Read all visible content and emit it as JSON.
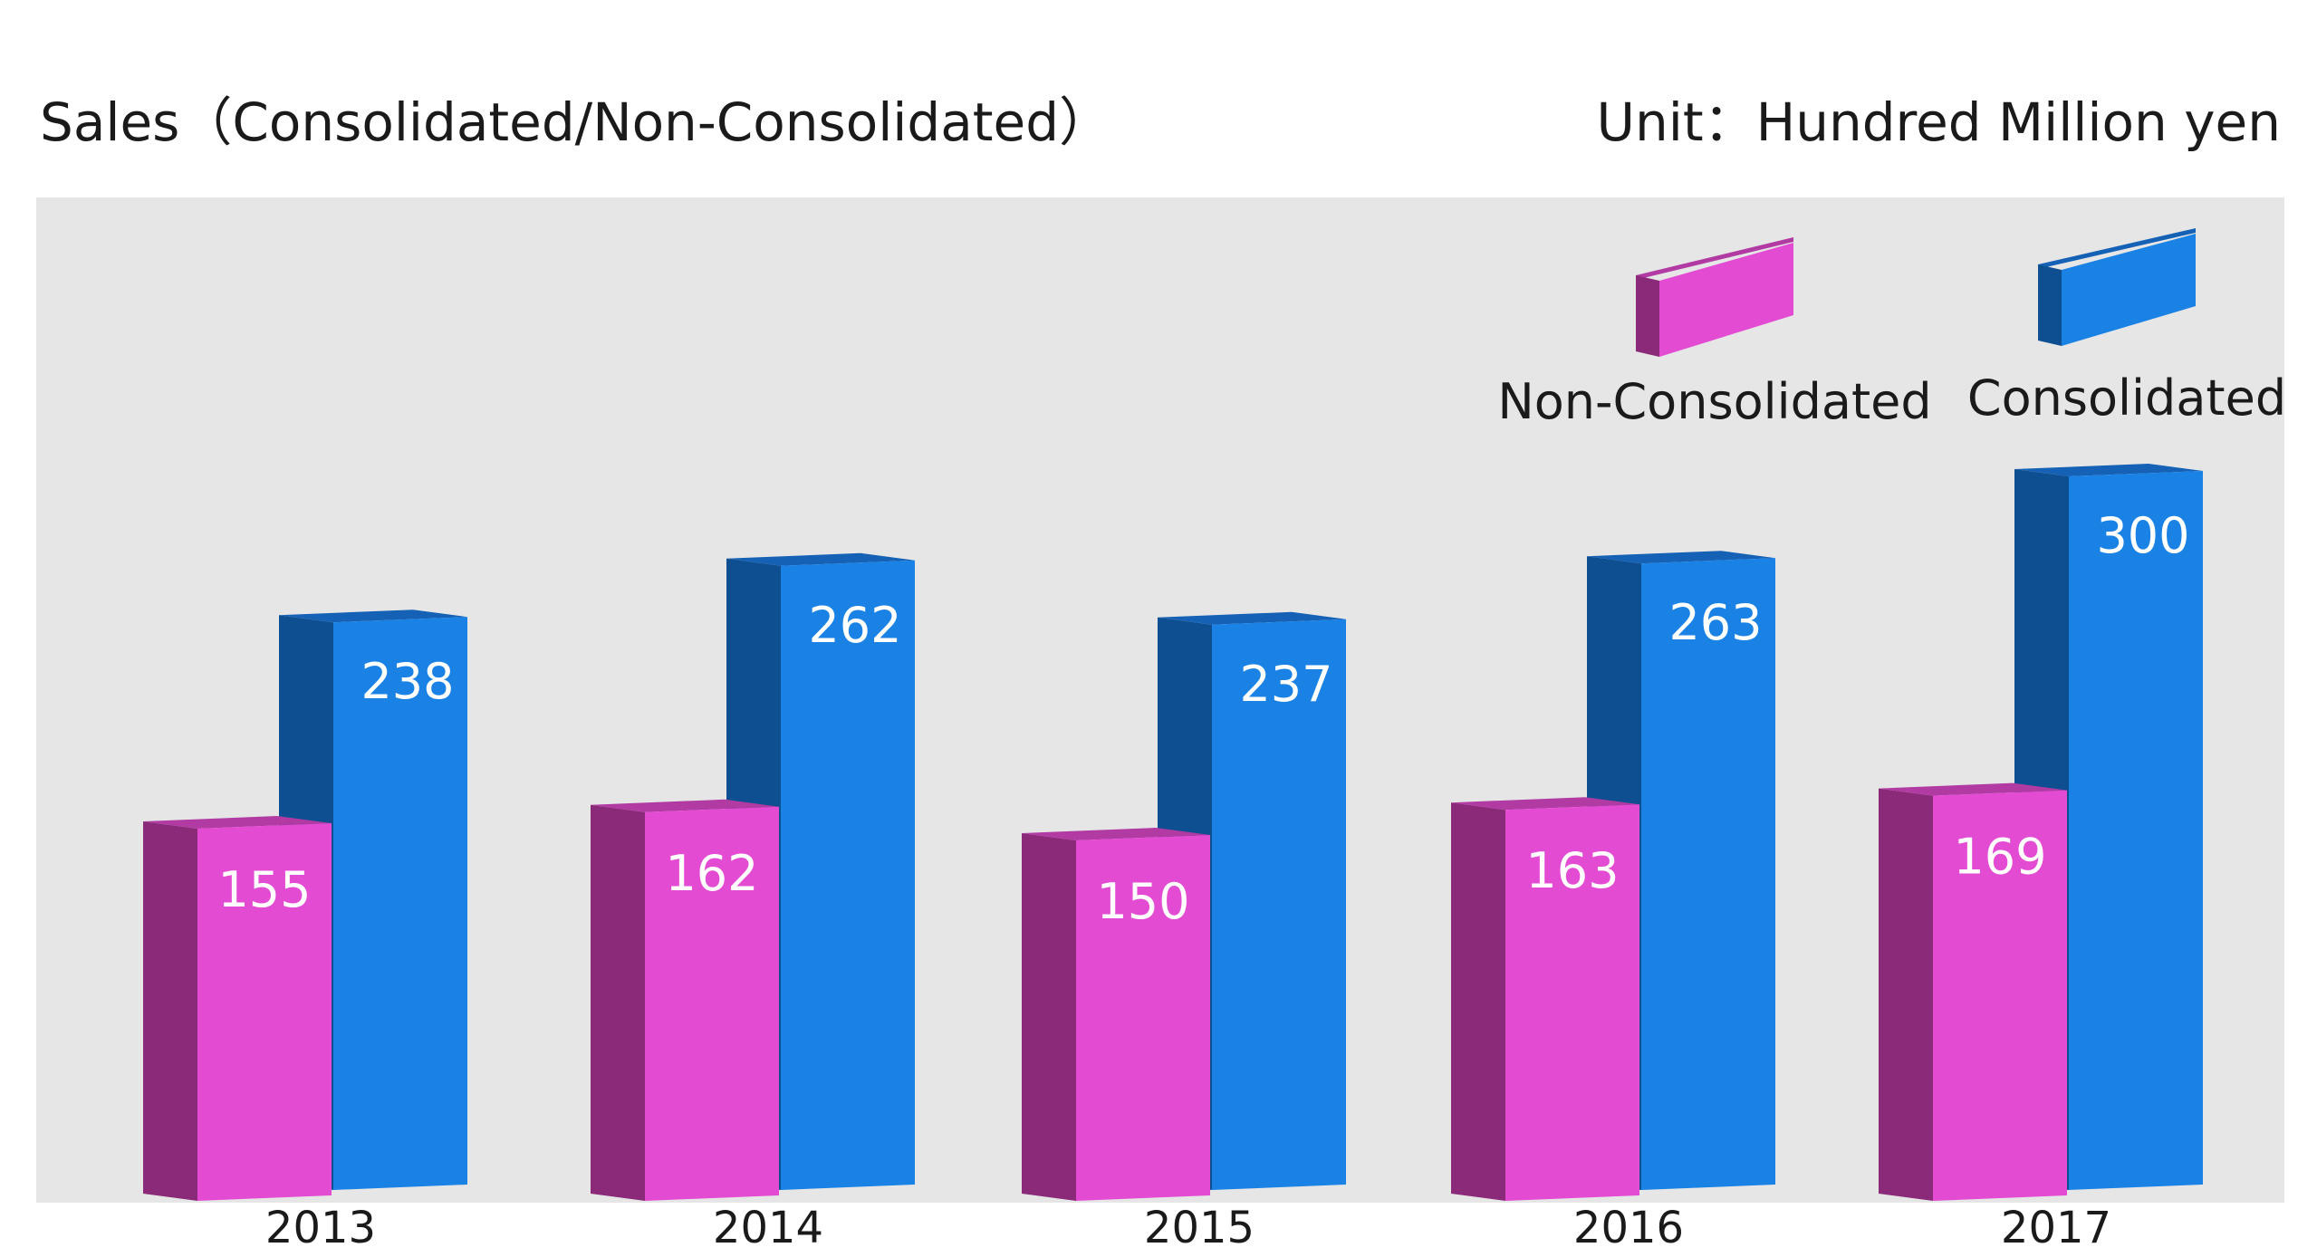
{
  "chart_data": {
    "type": "bar",
    "title": "Sales（Consolidated/Non-Consolidated）",
    "unit_label": "Unit：Hundred Million yen",
    "categories": [
      "2013",
      "2014",
      "2015",
      "2016",
      "2017"
    ],
    "series": [
      {
        "name": "Non-Consolidated",
        "values": [
          155,
          162,
          150,
          163,
          169
        ]
      },
      {
        "name": "Consolidated",
        "values": [
          238,
          262,
          237,
          263,
          300
        ]
      }
    ],
    "xlabel": "",
    "ylabel": "",
    "ylim": [
      0,
      300
    ],
    "legend": "top-right",
    "grid": false,
    "colors": {
      "non_consolidated_front": "#e44bd3",
      "non_consolidated_side": "#8a2a78",
      "non_consolidated_top": "#b13aa3",
      "consolidated_front": "#1a82e5",
      "consolidated_side": "#0d4f90",
      "consolidated_top": "#1461b5",
      "plot_background": "#e6e6e7"
    }
  }
}
